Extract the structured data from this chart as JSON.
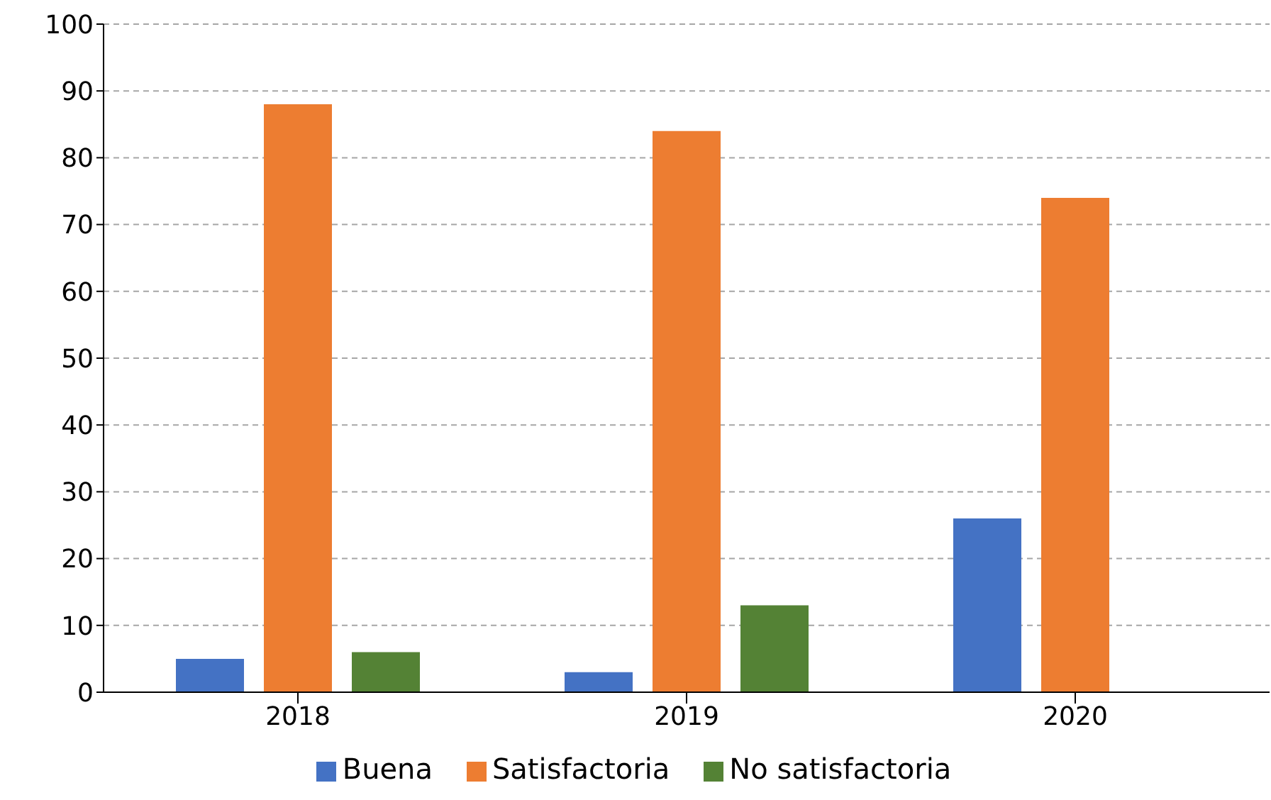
{
  "chart_data": {
    "type": "bar",
    "categories": [
      "2018",
      "2019",
      "2020"
    ],
    "series": [
      {
        "name": "Buena",
        "color": "#4472c4",
        "values": [
          5,
          3,
          26
        ]
      },
      {
        "name": "Satisfactoria",
        "color": "#ed7d31",
        "values": [
          88,
          84,
          74
        ]
      },
      {
        "name": "No satisfactoria",
        "color": "#548235",
        "values": [
          6,
          13,
          null
        ]
      }
    ],
    "ylim": [
      0,
      100
    ],
    "yticks": [
      0,
      10,
      20,
      30,
      40,
      50,
      60,
      70,
      80,
      90,
      100
    ],
    "grid": "y",
    "legend": "bottom"
  }
}
